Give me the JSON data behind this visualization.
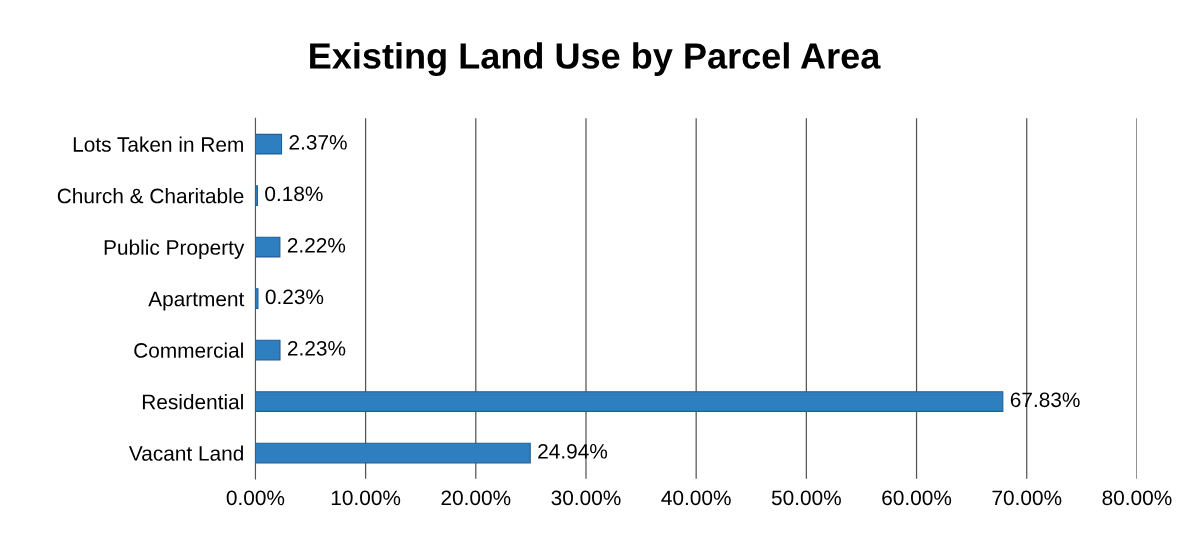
{
  "chart_data": {
    "type": "bar",
    "orientation": "horizontal",
    "title": "Existing Land Use by Parcel Area",
    "categories": [
      "Lots Taken in Rem",
      "Church & Charitable",
      "Public Property",
      "Apartment",
      "Commercial",
      "Residential",
      "Vacant Land"
    ],
    "values": [
      2.37,
      0.18,
      2.22,
      0.23,
      2.23,
      67.83,
      24.94
    ],
    "value_labels": [
      "2.37%",
      "0.18%",
      "2.22%",
      "0.23%",
      "2.23%",
      "67.83%",
      "24.94%"
    ],
    "color": "#2e7fc0",
    "xlim": [
      0,
      80
    ],
    "xticks": [
      {
        "value": 0,
        "label": "0.00%"
      },
      {
        "value": 10,
        "label": "10.00%"
      },
      {
        "value": 20,
        "label": "20.00%"
      },
      {
        "value": 30,
        "label": "30.00%"
      },
      {
        "value": 40,
        "label": "40.00%"
      },
      {
        "value": 50,
        "label": "50.00%"
      },
      {
        "value": 60,
        "label": "60.00%"
      },
      {
        "value": 70,
        "label": "70.00%"
      },
      {
        "value": 80,
        "label": "80.00%"
      }
    ],
    "grid": "x",
    "legend": false
  }
}
